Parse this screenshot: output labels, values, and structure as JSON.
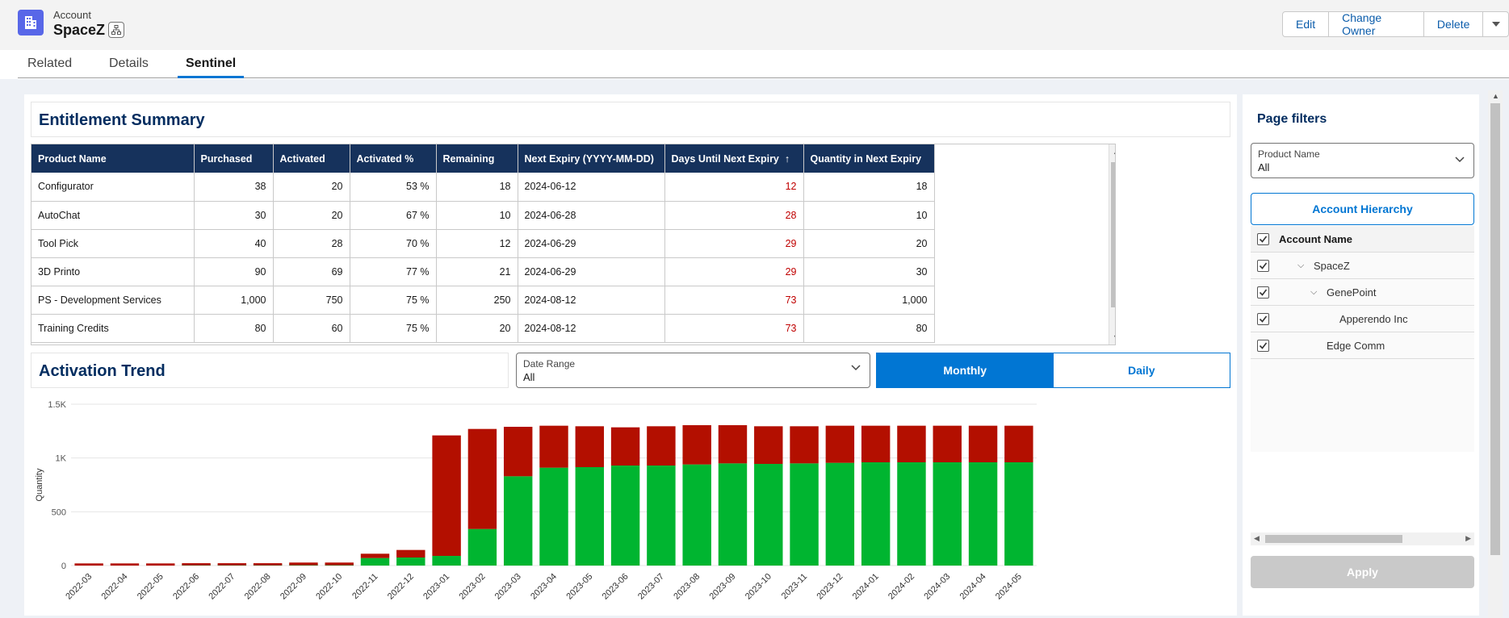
{
  "header": {
    "object_type": "Account",
    "record_name": "SpaceZ",
    "actions": [
      "Edit",
      "Change Owner",
      "Delete"
    ],
    "icons": {
      "record": "building-icon",
      "hierarchy": "hierarchy-icon",
      "more": "chevron-down-icon"
    }
  },
  "tabs": [
    {
      "label": "Related",
      "active": false
    },
    {
      "label": "Details",
      "active": false
    },
    {
      "label": "Sentinel",
      "active": true
    }
  ],
  "entitlement": {
    "title": "Entitlement Summary",
    "columns": [
      "Product Name",
      "Purchased",
      "Activated",
      "Activated %",
      "Remaining",
      "Next Expiry (YYYY-MM-DD)",
      "Days Until Next Expiry",
      "Quantity in Next Expiry"
    ],
    "sort_indicator": "↑",
    "rows": [
      [
        "Configurator",
        "38",
        "20",
        "53 %",
        "18",
        "2024-06-12",
        "12",
        "18"
      ],
      [
        "AutoChat",
        "30",
        "20",
        "67 %",
        "10",
        "2024-06-28",
        "28",
        "10"
      ],
      [
        "Tool Pick",
        "40",
        "28",
        "70 %",
        "12",
        "2024-06-29",
        "29",
        "20"
      ],
      [
        "3D Printo",
        "90",
        "69",
        "77 %",
        "21",
        "2024-06-29",
        "29",
        "30"
      ],
      [
        "PS - Development Services",
        "1,000",
        "750",
        "75 %",
        "250",
        "2024-08-12",
        "73",
        "1,000"
      ],
      [
        "Training Credits",
        "80",
        "60",
        "75 %",
        "20",
        "2024-08-12",
        "73",
        "80"
      ]
    ],
    "highlight_color": "#c00000"
  },
  "trend": {
    "title": "Activation Trend",
    "date_range": {
      "label": "Date Range",
      "value": "All"
    },
    "toggle": [
      {
        "label": "Monthly",
        "active": true
      },
      {
        "label": "Daily",
        "active": false
      }
    ]
  },
  "chart_data": {
    "type": "bar",
    "stacked": true,
    "ylabel": "Quantity",
    "xlabel": "",
    "ylim": [
      0,
      1500
    ],
    "yticks": [
      0,
      500,
      1000,
      1500
    ],
    "ytick_labels": [
      "0",
      "500",
      "1K",
      "1.5K"
    ],
    "categories": [
      "2022-03",
      "2022-04",
      "2022-05",
      "2022-06",
      "2022-07",
      "2022-08",
      "2022-09",
      "2022-10",
      "2022-11",
      "2022-12",
      "2023-01",
      "2023-02",
      "2023-03",
      "2023-04",
      "2023-05",
      "2023-06",
      "2023-07",
      "2023-08",
      "2023-09",
      "2023-10",
      "2023-11",
      "2023-12",
      "2024-01",
      "2024-02",
      "2024-03",
      "2024-04",
      "2024-05"
    ],
    "series": [
      {
        "color": "#00b530",
        "values": [
          0,
          0,
          0,
          2,
          2,
          2,
          3,
          3,
          70,
          75,
          90,
          340,
          830,
          910,
          915,
          930,
          930,
          940,
          950,
          945,
          950,
          955,
          960,
          960,
          960,
          960,
          960
        ]
      },
      {
        "color": "#b30f00",
        "values": [
          20,
          20,
          20,
          20,
          20,
          20,
          25,
          25,
          40,
          70,
          1120,
          930,
          460,
          390,
          380,
          355,
          365,
          365,
          355,
          350,
          345,
          345,
          340,
          340,
          340,
          340,
          340
        ]
      }
    ],
    "legend": "none",
    "grid": true
  },
  "filters": {
    "title": "Page filters",
    "product": {
      "label": "Product Name",
      "value": "All"
    },
    "hierarchy_button": "Account Hierarchy",
    "tree_header": "Account Name",
    "tree": [
      {
        "label": "SpaceZ",
        "level": 1,
        "expanded": true,
        "checked": true
      },
      {
        "label": "GenePoint",
        "level": 2,
        "expanded": true,
        "checked": true
      },
      {
        "label": "Apperendo Inc",
        "level": 3,
        "expanded": false,
        "checked": true
      },
      {
        "label": "Edge Comm",
        "level": 2,
        "expanded": false,
        "checked": true
      }
    ],
    "apply": "Apply"
  }
}
